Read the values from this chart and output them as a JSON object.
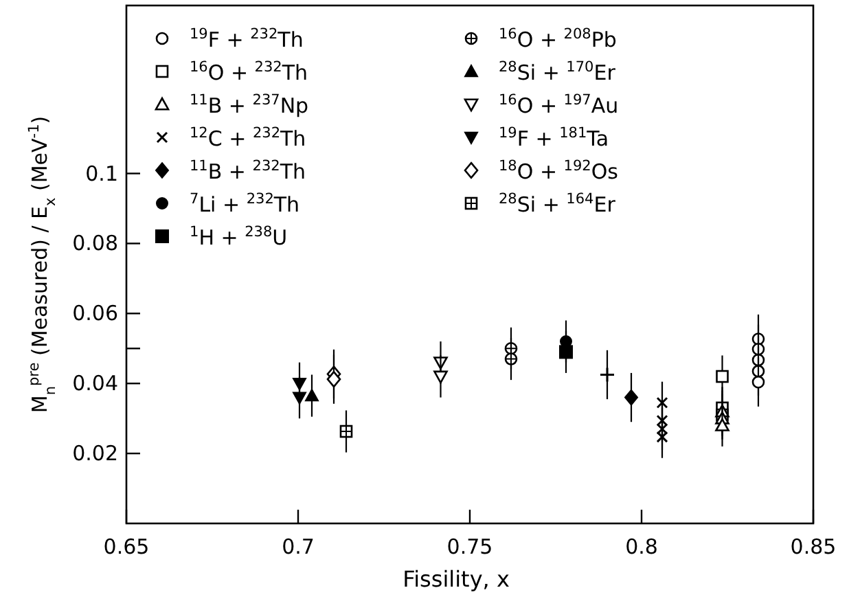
{
  "chart_data": {
    "type": "scatter",
    "xlabel": "Fissility, x",
    "ylabel": "M$_{n}$$^{pre}$ (Measured) / E$_{x}$ (MeV$^{-1}$)",
    "xlim": [
      0.65,
      0.85
    ],
    "xticks": [
      {
        "value": 0.65,
        "label": "0.65"
      },
      {
        "value": 0.7,
        "label": "0.7"
      },
      {
        "value": 0.75,
        "label": "0.75"
      },
      {
        "value": 0.8,
        "label": "0.8"
      },
      {
        "value": 0.85,
        "label": "0.85"
      }
    ],
    "ylim": [
      0,
      0.148
    ],
    "yticks": [
      {
        "value": 0.02,
        "label": "0.02"
      },
      {
        "value": 0.04,
        "label": "0.04"
      },
      {
        "value": 0.05,
        "label": null
      },
      {
        "value": 0.06,
        "label": "0.06"
      },
      {
        "value": 0.08,
        "label": "0.08"
      },
      {
        "value": 0.1,
        "label": "0.1"
      }
    ],
    "grid": false,
    "legend": "top",
    "series": [
      {
        "name": "$^{19}$F + $^{232}$Th",
        "color": "#000000",
        "marker": "circle-open",
        "x": [
          0.834,
          0.834,
          0.834,
          0.834,
          0.834
        ],
        "values": [
          0.0527,
          0.0498,
          0.0467,
          0.0435,
          0.0404
        ],
        "errors": [
          0.007,
          0.007,
          0.007,
          0.007,
          0.007
        ]
      },
      {
        "name": "$^{16}$O + $^{232}$Th",
        "color": "#000000",
        "marker": "square-open",
        "x": [
          0.8235,
          0.8235,
          0.8235
        ],
        "values": [
          0.042,
          0.033,
          0.031
        ],
        "errors": [
          0.006,
          0.006,
          0.006
        ]
      },
      {
        "name": "$^{11}$B + $^{237}$Np",
        "color": "#000000",
        "marker": "triangle-open",
        "x": [
          0.8235,
          0.8235,
          0.8235
        ],
        "values": [
          0.032,
          0.03,
          0.028
        ],
        "errors": [
          0.006,
          0.006,
          0.006
        ]
      },
      {
        "name": "$^{12}$C + $^{232}$Th",
        "color": "#000000",
        "marker": "cross",
        "x": [
          0.806,
          0.806,
          0.806,
          0.806
        ],
        "values": [
          0.0345,
          0.0294,
          0.027,
          0.0247
        ],
        "errors": [
          0.006,
          0.006,
          0.006,
          0.006
        ]
      },
      {
        "name": "$^{11}$B + $^{232}$Th",
        "color": "#000000",
        "marker": "diamond-filled",
        "x": [
          0.797
        ],
        "values": [
          0.036
        ],
        "errors": [
          0.007
        ]
      },
      {
        "name": "$^{7}$Li + $^{232}$Th",
        "color": "#000000",
        "marker": "circle-filled",
        "x": [
          0.778
        ],
        "values": [
          0.052
        ],
        "errors": [
          0.006
        ]
      },
      {
        "name": "$^{1}$H + $^{238}$U",
        "color": "#000000",
        "marker": "square-filled",
        "x": [
          0.778
        ],
        "values": [
          0.049
        ],
        "errors": [
          0.006
        ]
      },
      {
        "name": "$^{16}$O + $^{208}$Pb",
        "color": "#000000",
        "marker": "circle-plus",
        "x": [
          0.762,
          0.762
        ],
        "values": [
          0.05,
          0.047
        ],
        "errors": [
          0.006,
          0.006
        ]
      },
      {
        "name": "$^{28}$Si + $^{170}$Er",
        "color": "#000000",
        "marker": "triangle-filled",
        "x": [
          0.704
        ],
        "values": [
          0.0365
        ],
        "errors": [
          0.006
        ]
      },
      {
        "name": "$^{16}$O + $^{197}$Au",
        "color": "#000000",
        "marker": "triangle-down-open",
        "x": [
          0.7415,
          0.7415
        ],
        "values": [
          0.046,
          0.042
        ],
        "errors": [
          0.006,
          0.006
        ]
      },
      {
        "name": "$^{19}$F + $^{181}$Ta",
        "color": "#000000",
        "marker": "triangle-down-filled",
        "x": [
          0.7004,
          0.7004
        ],
        "values": [
          0.04,
          0.036
        ],
        "errors": [
          0.006,
          0.006
        ]
      },
      {
        "name": "$^{18}$O + $^{192}$Os",
        "color": "#000000",
        "marker": "diamond-open",
        "x": [
          0.7104,
          0.7104
        ],
        "values": [
          0.0427,
          0.0412
        ],
        "errors": [
          0.007,
          0.007
        ]
      },
      {
        "name": "$^{28}$Si + $^{164}$Er",
        "color": "#000000",
        "marker": "square-plus",
        "x": [
          0.714
        ],
        "values": [
          0.0263
        ],
        "errors": [
          0.006
        ]
      },
      {
        "color": "#000000",
        "marker": "plus",
        "x": [
          0.79
        ],
        "values": [
          0.0425
        ],
        "errors": [
          0.007
        ]
      }
    ]
  }
}
